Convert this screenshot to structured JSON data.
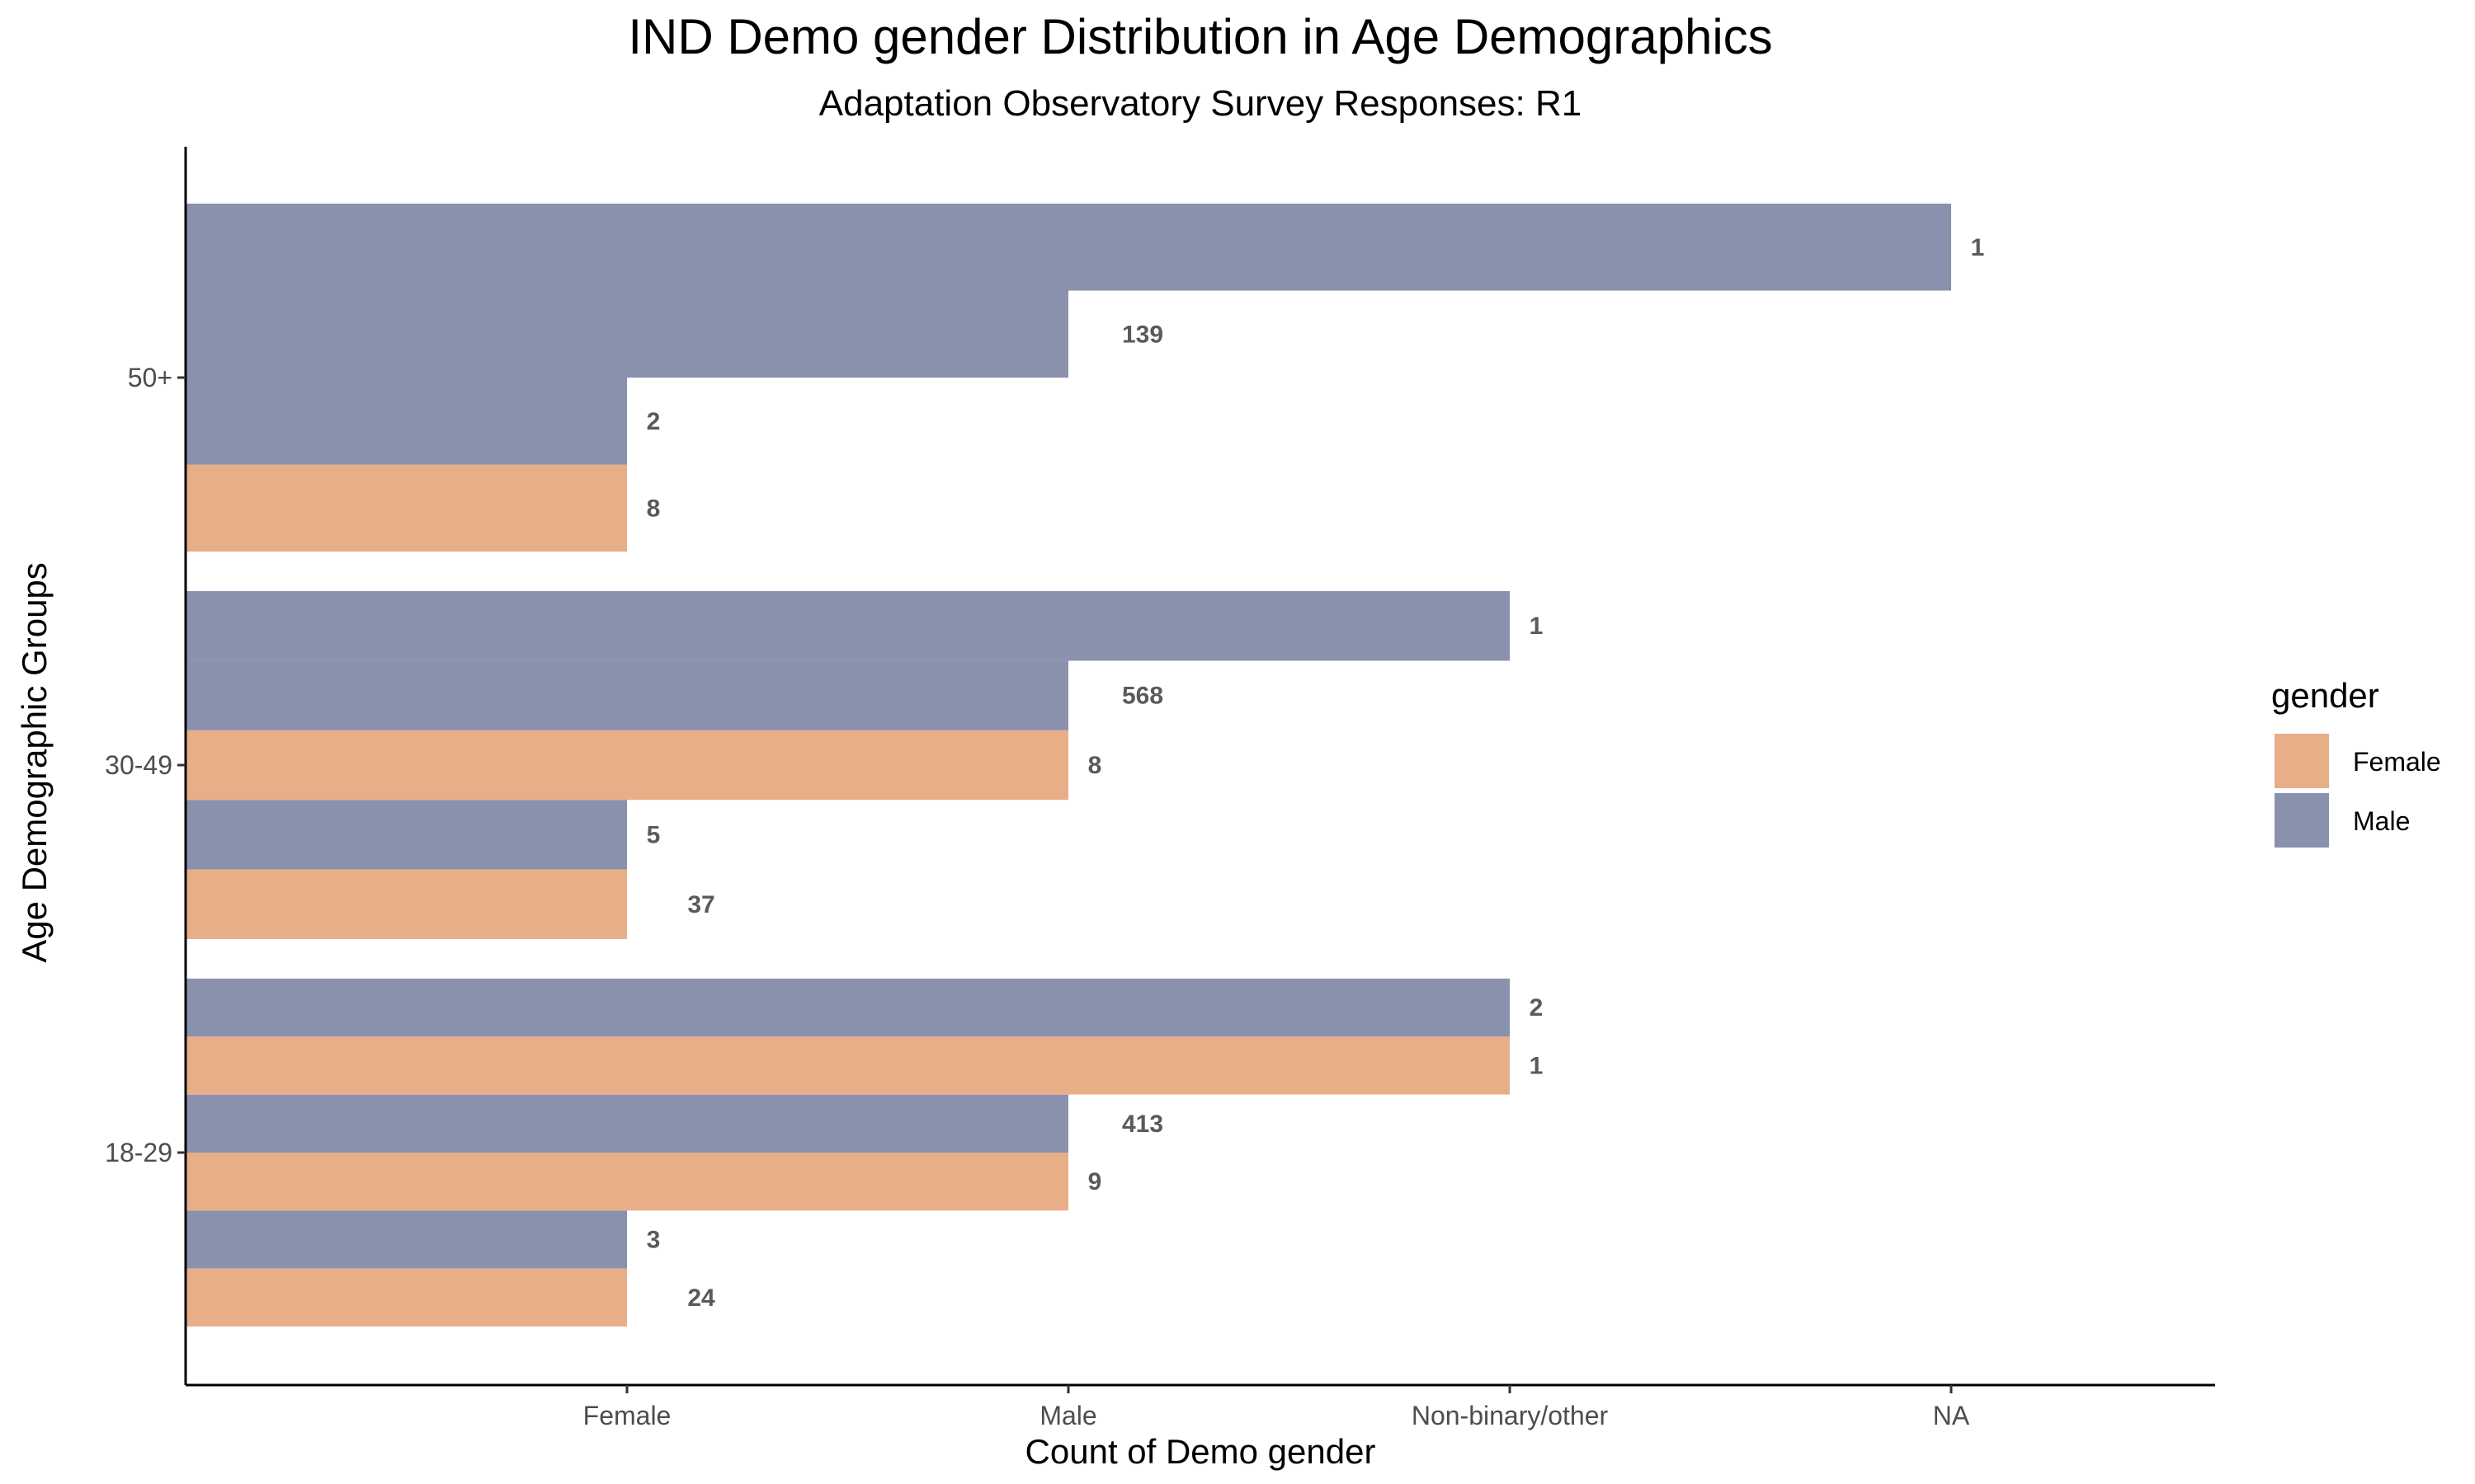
{
  "chart_data": {
    "type": "bar",
    "orientation": "horizontal",
    "title": "IND Demo gender Distribution in Age Demographics",
    "subtitle": "Adaptation Observatory Survey Responses: R1",
    "xlabel": "Count of Demo gender",
    "ylabel": "Age Demographic Groups",
    "x_ticks": [
      "Female",
      "Male",
      "Non-binary/other",
      "NA"
    ],
    "x_range": [
      0,
      4.6
    ],
    "categories": [
      "18-29",
      "30-49",
      "50+"
    ],
    "legend": {
      "title": "gender",
      "placement": "right",
      "entries": [
        {
          "name": "Female",
          "color": "#E8AE88"
        },
        {
          "name": "Male",
          "color": "#8A91AC"
        }
      ]
    },
    "grid": false,
    "groups": [
      {
        "category": "18-29",
        "bars": [
          {
            "gender": "Female",
            "x": 1,
            "label": "24"
          },
          {
            "gender": "Male",
            "x": 1,
            "label": "3"
          },
          {
            "gender": "Female",
            "x": 2,
            "label": "9"
          },
          {
            "gender": "Male",
            "x": 2,
            "label": "413"
          },
          {
            "gender": "Female",
            "x": 3,
            "label": "1"
          },
          {
            "gender": "Male",
            "x": 3,
            "label": "2"
          }
        ]
      },
      {
        "category": "30-49",
        "bars": [
          {
            "gender": "Female",
            "x": 1,
            "label": "37"
          },
          {
            "gender": "Male",
            "x": 1,
            "label": "5"
          },
          {
            "gender": "Female",
            "x": 2,
            "label": "8"
          },
          {
            "gender": "Male",
            "x": 2,
            "label": "568"
          },
          {
            "gender": "Male",
            "x": 3,
            "label": "1"
          }
        ]
      },
      {
        "category": "50+",
        "bars": [
          {
            "gender": "Female",
            "x": 1,
            "label": "8"
          },
          {
            "gender": "Male",
            "x": 1,
            "label": "2"
          },
          {
            "gender": "Male",
            "x": 2,
            "label": "139"
          },
          {
            "gender": "Male",
            "x": 4,
            "label": "1"
          }
        ]
      }
    ]
  }
}
